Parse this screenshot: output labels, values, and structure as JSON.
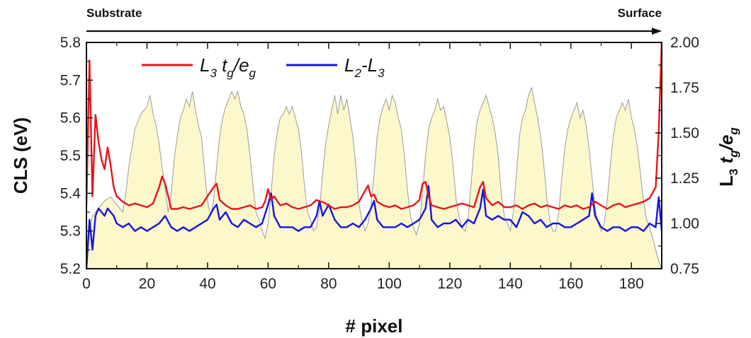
{
  "banner": {
    "left_label": "Substrate",
    "right_label": "Surface"
  },
  "legend": {
    "red": {
      "main1": "L",
      "sub1": "3",
      "main2": " t",
      "sub2": "g",
      "main3": "/e",
      "sub3": "g"
    },
    "blue": {
      "main1": "L",
      "sub1": "2",
      "main2": "-L",
      "sub2": "3"
    }
  },
  "axes": {
    "xlabel": "# pixel",
    "ylabel": "CLS (eV)",
    "y2label_main1": "L",
    "y2label_sub1": "3",
    "y2label_main2": " t",
    "y2label_sub2": "g",
    "y2label_main3": "/e",
    "y2label_sub3": "g"
  },
  "colors": {
    "red_series": "#e8141b",
    "blue_series": "#1515dd",
    "fill": "#fdf8cc",
    "fill_line": "#9a9a9a"
  },
  "chart_data": {
    "type": "line",
    "xlim": [
      0,
      190
    ],
    "ylim": [
      5.2,
      5.8
    ],
    "y2lim": [
      0.75,
      2.0
    ],
    "xticks": [
      "0",
      "20",
      "40",
      "60",
      "80",
      "100",
      "120",
      "140",
      "160",
      "180"
    ],
    "yticks": [
      "5.2",
      "5.3",
      "5.4",
      "5.5",
      "5.6",
      "5.7",
      "5.8"
    ],
    "y2ticks": [
      "0.75",
      "1.00",
      "1.25",
      "1.50",
      "1.75",
      "2.00"
    ],
    "grid": false,
    "legend_position": "top-left",
    "series": [
      {
        "name": "L3 tg/eg",
        "axis": "right",
        "x": [
          0,
          1,
          2,
          3,
          4,
          5,
          6,
          7,
          8,
          9,
          10,
          12,
          14,
          16,
          18,
          20,
          22,
          24,
          25,
          26,
          27,
          28,
          30,
          32,
          34,
          36,
          38,
          40,
          42,
          43,
          44,
          46,
          48,
          50,
          52,
          54,
          56,
          58,
          59,
          60,
          61,
          62,
          64,
          66,
          68,
          70,
          72,
          74,
          76,
          77,
          78,
          80,
          82,
          84,
          86,
          88,
          90,
          92,
          93,
          94,
          95,
          96,
          98,
          100,
          102,
          104,
          106,
          108,
          110,
          111,
          112,
          113,
          114,
          116,
          118,
          120,
          122,
          124,
          126,
          128,
          130,
          131,
          132,
          134,
          136,
          138,
          140,
          142,
          144,
          146,
          148,
          150,
          152,
          154,
          156,
          158,
          160,
          162,
          164,
          166,
          168,
          170,
          172,
          174,
          176,
          178,
          180,
          182,
          184,
          186,
          188,
          189,
          190
        ],
        "y": [
          1.1,
          1.9,
          1.15,
          1.6,
          1.45,
          1.35,
          1.3,
          1.42,
          1.32,
          1.2,
          1.15,
          1.12,
          1.1,
          1.11,
          1.1,
          1.09,
          1.11,
          1.2,
          1.26,
          1.22,
          1.15,
          1.08,
          1.08,
          1.09,
          1.08,
          1.09,
          1.1,
          1.15,
          1.2,
          1.22,
          1.13,
          1.1,
          1.08,
          1.08,
          1.09,
          1.1,
          1.08,
          1.09,
          1.12,
          1.19,
          1.13,
          1.15,
          1.1,
          1.11,
          1.09,
          1.08,
          1.09,
          1.1,
          1.13,
          1.12,
          1.12,
          1.1,
          1.08,
          1.09,
          1.09,
          1.1,
          1.12,
          1.18,
          1.21,
          1.15,
          1.16,
          1.12,
          1.1,
          1.09,
          1.1,
          1.08,
          1.09,
          1.1,
          1.13,
          1.22,
          1.23,
          1.15,
          1.1,
          1.09,
          1.08,
          1.09,
          1.1,
          1.11,
          1.1,
          1.09,
          1.2,
          1.23,
          1.14,
          1.1,
          1.12,
          1.09,
          1.09,
          1.1,
          1.08,
          1.1,
          1.11,
          1.09,
          1.1,
          1.09,
          1.08,
          1.1,
          1.09,
          1.1,
          1.08,
          1.09,
          1.12,
          1.1,
          1.08,
          1.1,
          1.11,
          1.09,
          1.1,
          1.11,
          1.12,
          1.14,
          1.2,
          1.5,
          2.0
        ]
      },
      {
        "name": "L2-L3",
        "axis": "left",
        "x": [
          0,
          1,
          2,
          3,
          4,
          5,
          6,
          7,
          8,
          9,
          10,
          12,
          14,
          16,
          18,
          20,
          22,
          24,
          26,
          28,
          30,
          32,
          34,
          36,
          38,
          40,
          42,
          43,
          44,
          46,
          48,
          50,
          52,
          54,
          56,
          58,
          60,
          61,
          62,
          64,
          66,
          68,
          70,
          72,
          74,
          76,
          77,
          78,
          80,
          82,
          84,
          86,
          88,
          90,
          92,
          94,
          95,
          96,
          98,
          100,
          102,
          104,
          106,
          108,
          110,
          112,
          113,
          114,
          116,
          118,
          120,
          122,
          124,
          126,
          128,
          130,
          131,
          132,
          134,
          136,
          138,
          140,
          142,
          144,
          146,
          148,
          150,
          152,
          154,
          156,
          158,
          160,
          162,
          164,
          166,
          167,
          168,
          170,
          172,
          174,
          176,
          178,
          180,
          182,
          184,
          186,
          188,
          189,
          190
        ],
        "y": [
          5.2,
          5.33,
          5.25,
          5.34,
          5.36,
          5.35,
          5.34,
          5.36,
          5.35,
          5.34,
          5.32,
          5.31,
          5.32,
          5.3,
          5.31,
          5.3,
          5.31,
          5.32,
          5.34,
          5.31,
          5.3,
          5.31,
          5.3,
          5.31,
          5.32,
          5.33,
          5.36,
          5.37,
          5.33,
          5.35,
          5.32,
          5.31,
          5.33,
          5.32,
          5.31,
          5.32,
          5.37,
          5.4,
          5.34,
          5.31,
          5.31,
          5.31,
          5.3,
          5.31,
          5.31,
          5.34,
          5.38,
          5.34,
          5.37,
          5.33,
          5.31,
          5.31,
          5.32,
          5.31,
          5.33,
          5.36,
          5.38,
          5.33,
          5.31,
          5.31,
          5.31,
          5.32,
          5.31,
          5.32,
          5.33,
          5.36,
          5.42,
          5.33,
          5.31,
          5.32,
          5.32,
          5.33,
          5.31,
          5.33,
          5.32,
          5.36,
          5.41,
          5.34,
          5.33,
          5.34,
          5.33,
          5.33,
          5.31,
          5.35,
          5.34,
          5.32,
          5.33,
          5.31,
          5.32,
          5.32,
          5.31,
          5.31,
          5.32,
          5.33,
          5.34,
          5.4,
          5.34,
          5.31,
          5.3,
          5.31,
          5.31,
          5.3,
          5.31,
          5.31,
          5.3,
          5.32,
          5.31,
          5.39,
          5.3
        ]
      },
      {
        "name": "",
        "axis": "left",
        "style": "filled-area",
        "x": [
          0,
          1,
          2,
          4,
          6,
          8,
          10,
          12,
          13,
          14,
          15,
          16,
          17,
          18,
          19,
          20,
          21,
          22,
          23,
          24,
          25,
          26,
          27,
          28,
          29,
          30,
          31,
          32,
          33,
          34,
          35,
          36,
          37,
          38,
          39,
          40,
          41,
          42,
          43,
          44,
          45,
          46,
          47,
          48,
          49,
          50,
          51,
          52,
          53,
          54,
          55,
          56,
          57,
          58,
          59,
          60,
          61,
          62,
          63,
          64,
          65,
          66,
          67,
          68,
          69,
          70,
          71,
          72,
          73,
          74,
          75,
          76,
          77,
          78,
          79,
          80,
          81,
          82,
          83,
          84,
          85,
          86,
          87,
          88,
          89,
          90,
          91,
          92,
          93,
          94,
          95,
          96,
          97,
          98,
          99,
          100,
          101,
          102,
          103,
          104,
          105,
          106,
          107,
          108,
          109,
          110,
          111,
          112,
          113,
          114,
          115,
          116,
          117,
          118,
          119,
          120,
          121,
          122,
          123,
          124,
          125,
          126,
          127,
          128,
          129,
          130,
          131,
          132,
          133,
          134,
          135,
          136,
          137,
          138,
          139,
          140,
          141,
          142,
          143,
          144,
          145,
          146,
          147,
          148,
          149,
          150,
          151,
          152,
          153,
          154,
          155,
          156,
          157,
          158,
          159,
          160,
          161,
          162,
          163,
          164,
          165,
          166,
          167,
          168,
          169,
          170,
          171,
          172,
          173,
          174,
          175,
          176,
          177,
          178,
          179,
          180,
          181,
          182,
          183,
          184,
          185,
          186,
          187,
          188,
          189,
          190
        ],
        "y": [
          5.2,
          5.3,
          5.34,
          5.36,
          5.38,
          5.39,
          5.37,
          5.35,
          5.4,
          5.47,
          5.52,
          5.57,
          5.59,
          5.61,
          5.62,
          5.63,
          5.66,
          5.61,
          5.58,
          5.53,
          5.47,
          5.41,
          5.35,
          5.4,
          5.49,
          5.55,
          5.6,
          5.62,
          5.65,
          5.63,
          5.67,
          5.62,
          5.58,
          5.55,
          5.46,
          5.38,
          5.34,
          5.38,
          5.47,
          5.55,
          5.6,
          5.63,
          5.65,
          5.67,
          5.65,
          5.67,
          5.63,
          5.61,
          5.57,
          5.5,
          5.42,
          5.35,
          5.33,
          5.3,
          5.28,
          5.32,
          5.4,
          5.5,
          5.56,
          5.6,
          5.61,
          5.63,
          5.61,
          5.63,
          5.6,
          5.57,
          5.51,
          5.42,
          5.35,
          5.33,
          5.3,
          5.31,
          5.36,
          5.45,
          5.53,
          5.58,
          5.62,
          5.66,
          5.61,
          5.66,
          5.62,
          5.65,
          5.6,
          5.55,
          5.47,
          5.37,
          5.33,
          5.3,
          5.32,
          5.37,
          5.45,
          5.55,
          5.6,
          5.63,
          5.65,
          5.62,
          5.66,
          5.64,
          5.6,
          5.57,
          5.5,
          5.41,
          5.34,
          5.31,
          5.29,
          5.32,
          5.4,
          5.5,
          5.57,
          5.6,
          5.62,
          5.65,
          5.62,
          5.63,
          5.59,
          5.55,
          5.48,
          5.39,
          5.34,
          5.31,
          5.3,
          5.33,
          5.42,
          5.52,
          5.59,
          5.62,
          5.64,
          5.66,
          5.63,
          5.6,
          5.56,
          5.5,
          5.4,
          5.34,
          5.32,
          5.3,
          5.35,
          5.45,
          5.55,
          5.6,
          5.62,
          5.66,
          5.68,
          5.64,
          5.6,
          5.55,
          5.48,
          5.39,
          5.33,
          5.3,
          5.3,
          5.35,
          5.44,
          5.52,
          5.57,
          5.6,
          5.62,
          5.64,
          5.6,
          5.62,
          5.58,
          5.52,
          5.44,
          5.36,
          5.32,
          5.3,
          5.32,
          5.38,
          5.47,
          5.55,
          5.6,
          5.62,
          5.64,
          5.62,
          5.65,
          5.6,
          5.57,
          5.52,
          5.45,
          5.38,
          5.33,
          5.31,
          5.28,
          5.25,
          5.22,
          5.2
        ]
      }
    ]
  }
}
